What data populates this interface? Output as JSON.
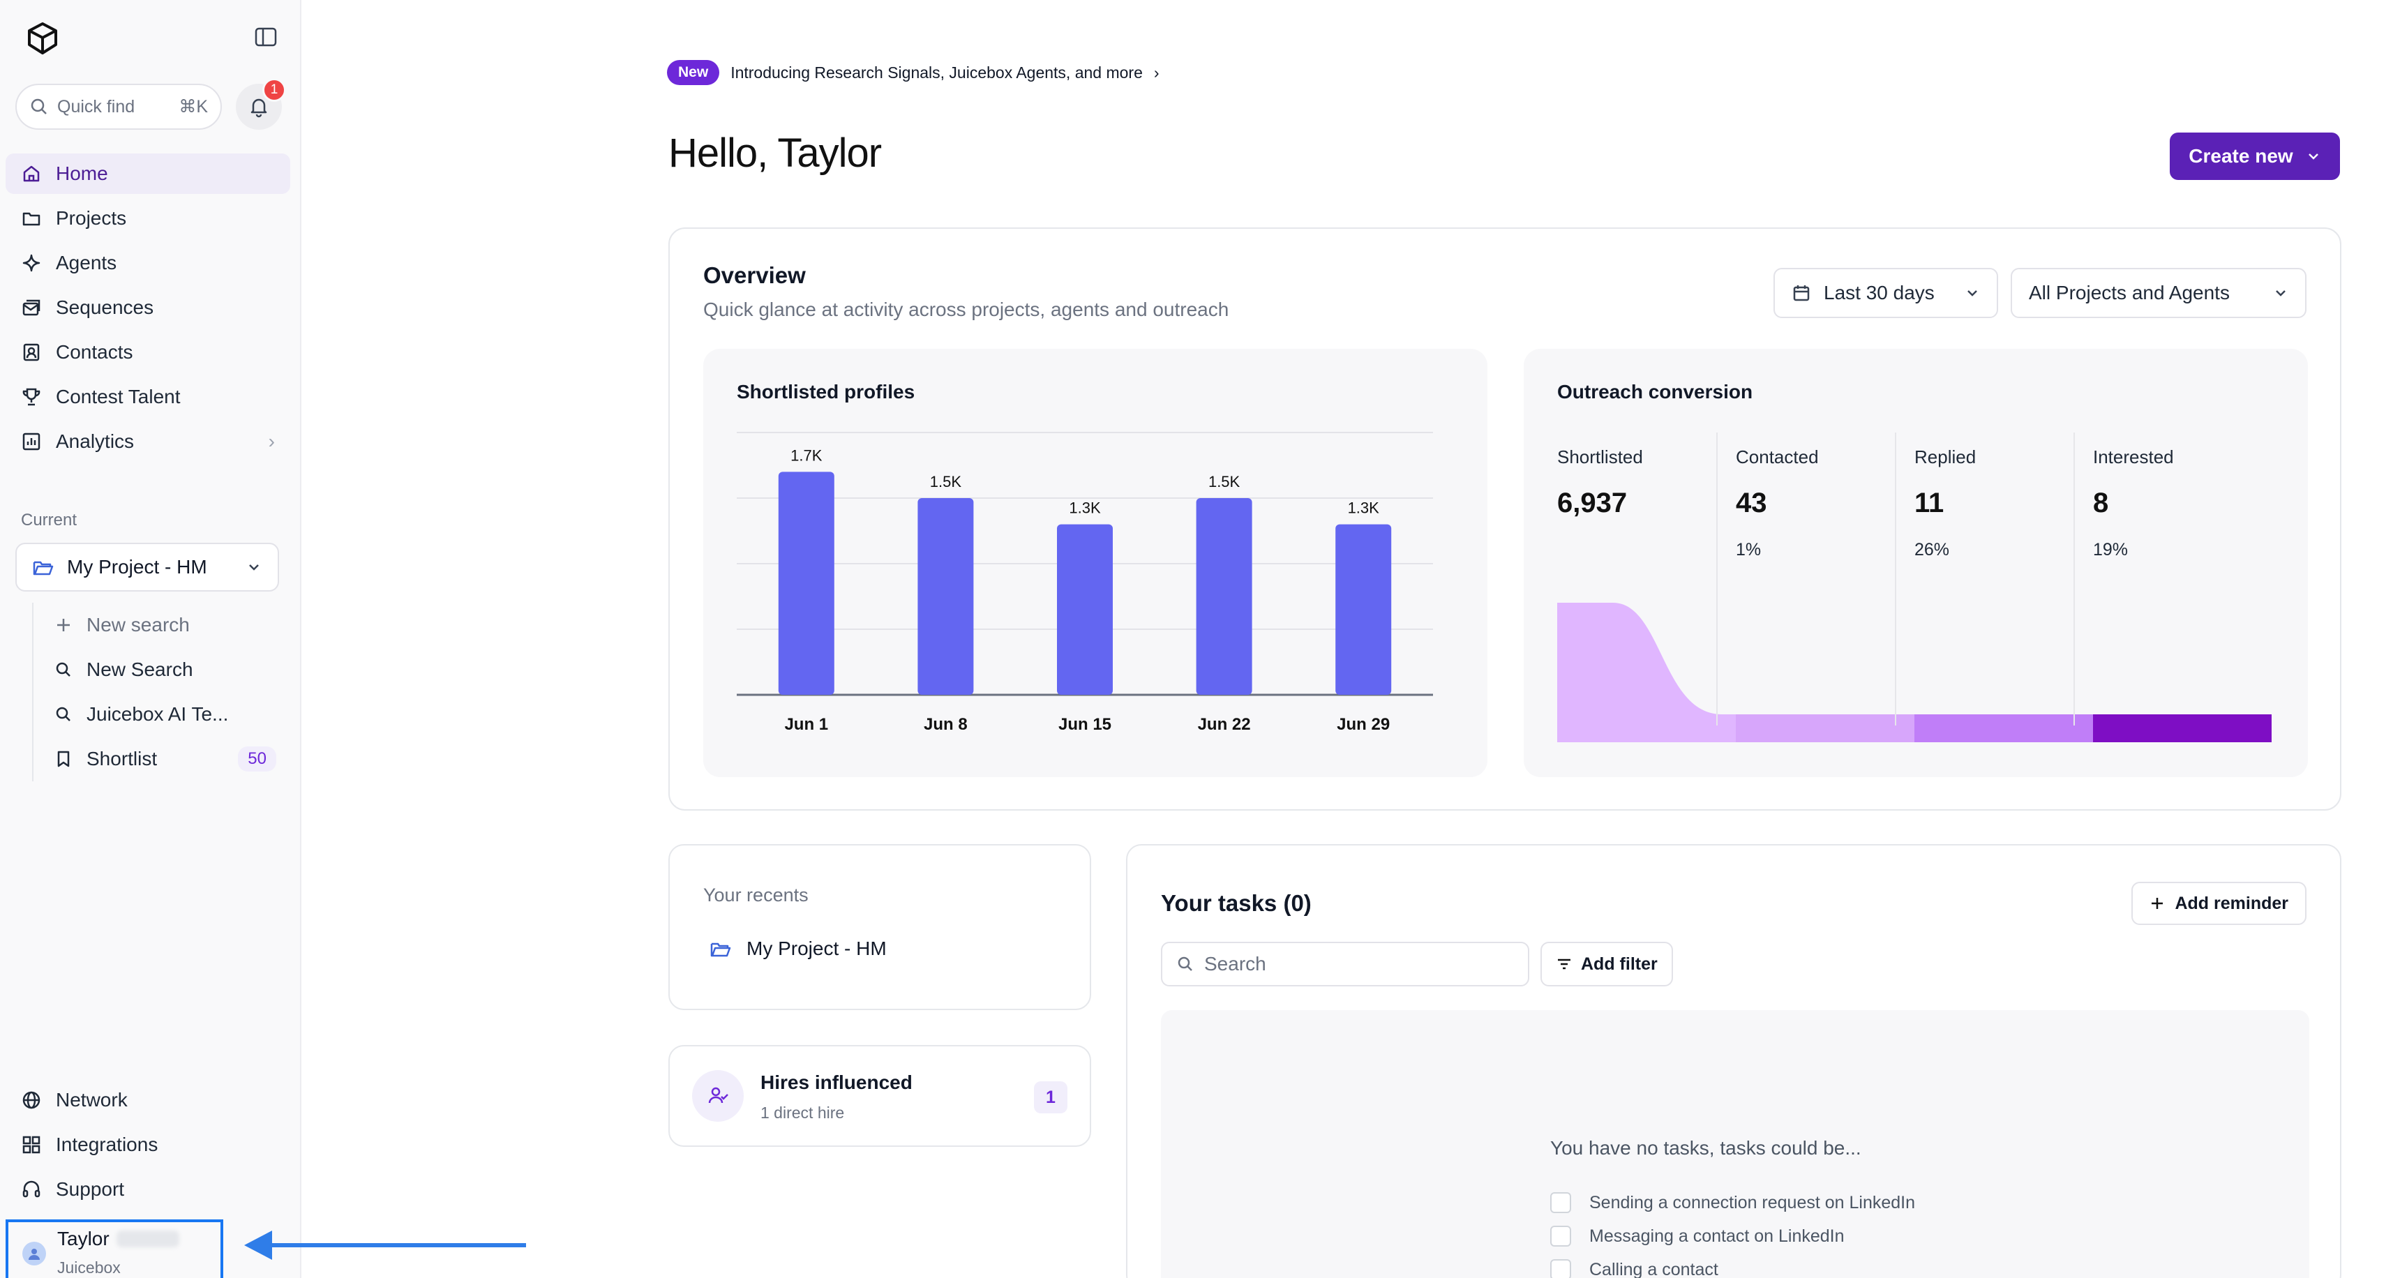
{
  "sidebar": {
    "quick_find": {
      "label": "Quick find",
      "shortcut": "⌘K"
    },
    "notifications_count": "1",
    "nav": [
      {
        "label": "Home",
        "icon": "home-icon"
      },
      {
        "label": "Projects",
        "icon": "folder-icon"
      },
      {
        "label": "Agents",
        "icon": "sparkle-icon"
      },
      {
        "label": "Sequences",
        "icon": "mail-stack-icon"
      },
      {
        "label": "Contacts",
        "icon": "contact-icon"
      },
      {
        "label": "Contest Talent",
        "icon": "trophy-icon"
      },
      {
        "label": "Analytics",
        "icon": "chart-icon"
      }
    ],
    "current_label": "Current",
    "project": "My Project - HM",
    "sub_items": [
      {
        "label": "New search"
      },
      {
        "label": "New Search"
      },
      {
        "label": "Juicebox AI Te..."
      },
      {
        "label": "Shortlist",
        "count": "50"
      }
    ],
    "bottom_nav": [
      {
        "label": "Network"
      },
      {
        "label": "Integrations"
      },
      {
        "label": "Support"
      }
    ],
    "user": {
      "name": "Taylor",
      "org": "Juicebox"
    }
  },
  "announcement": {
    "badge": "New",
    "text": "Introducing Research Signals, Juicebox Agents, and more"
  },
  "greeting": "Hello, Taylor",
  "create_button": "Create new",
  "overview": {
    "title": "Overview",
    "subtitle": "Quick glance at activity across projects, agents and outreach",
    "date_filter": "Last 30 days",
    "scope_filter": "All Projects and Agents"
  },
  "chart_data": [
    {
      "type": "bar",
      "title": "Shortlisted profiles",
      "categories": [
        "Jun 1",
        "Jun 8",
        "Jun 15",
        "Jun 22",
        "Jun 29"
      ],
      "values": [
        1700,
        1500,
        1300,
        1500,
        1300
      ],
      "labels": [
        "1.7K",
        "1.5K",
        "1.3K",
        "1.5K",
        "1.3K"
      ],
      "ylim": [
        0,
        2000
      ],
      "grid": true,
      "color": "#6366f1"
    },
    {
      "type": "area",
      "title": "Outreach conversion",
      "categories": [
        "Shortlisted",
        "Contacted",
        "Replied",
        "Interested"
      ],
      "values": [
        6937,
        43,
        11,
        8
      ],
      "percent_labels": [
        "",
        "1%",
        "26%",
        "19%"
      ],
      "colors": [
        "#e0b6ff",
        "#d7a6fb",
        "#c07ef8",
        "#7e0ec4"
      ]
    }
  ],
  "outreach_display": [
    "6,937",
    "43",
    "11",
    "8"
  ],
  "recents": {
    "title": "Your recents",
    "item": "My Project - HM"
  },
  "hires": {
    "title": "Hires influenced",
    "subtitle": "1 direct hire",
    "count": "1"
  },
  "tasks": {
    "title": "Your tasks (0)",
    "add_reminder": "Add reminder",
    "search_placeholder": "Search",
    "filter": "Add filter",
    "empty_heading": "You have no tasks, tasks could be...",
    "suggestions": [
      "Sending a connection request on LinkedIn",
      "Messaging a contact on LinkedIn",
      "Calling a contact"
    ]
  }
}
